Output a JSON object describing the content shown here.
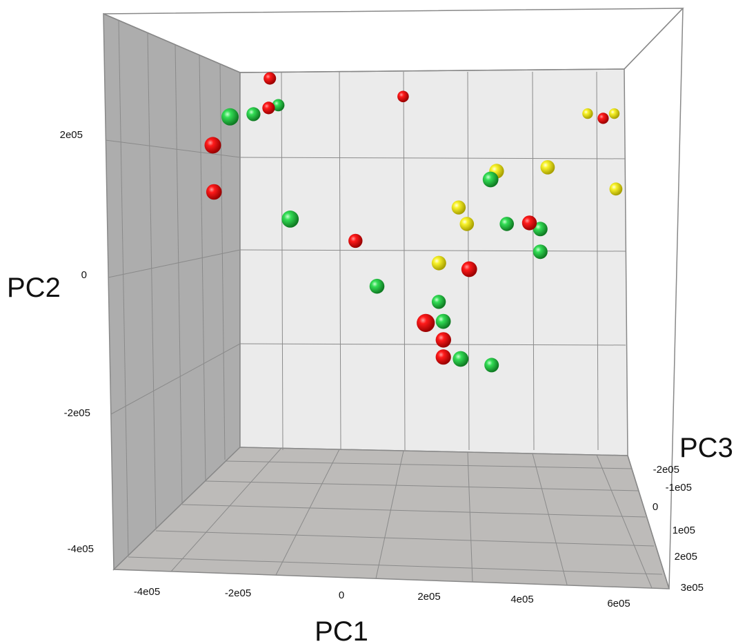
{
  "chart_data": {
    "type": "scatter",
    "subtype": "3d-scatter",
    "title": "",
    "xlabel": "PC1",
    "ylabel": "PC2",
    "zlabel": "PC3",
    "xlim": [
      -450000,
      680000
    ],
    "ylim": [
      -460000,
      330000
    ],
    "zlim": [
      -250000,
      300000
    ],
    "x_ticks": [
      "-4e05",
      "-2e05",
      "0",
      "2e05",
      "4e05",
      "6e05"
    ],
    "y_ticks": [
      "2e05",
      "0",
      "-2e05",
      "-4e05"
    ],
    "z_ticks": [
      "-2e05",
      "-1e05",
      "0",
      "1e05",
      "2e05",
      "3e05"
    ],
    "grid": true,
    "legend": "none",
    "colors": {
      "red": "#e00000",
      "green": "#22cc44",
      "yellow": "#f2ec1e"
    },
    "series": [
      {
        "color": "red",
        "points": [
          {
            "x": -330000,
            "y": 290000,
            "z": -160000
          },
          {
            "x": -330000,
            "y": 230000,
            "z": -150000
          },
          {
            "x": 30000,
            "y": 270000,
            "z": -220000
          },
          {
            "x": 610000,
            "y": 230000,
            "z": -240000
          },
          {
            "x": -380000,
            "y": 120000,
            "z": 120000
          },
          {
            "x": -400000,
            "y": 50000,
            "z": 50000
          },
          {
            "x": -80000,
            "y": -30000,
            "z": -50000
          },
          {
            "x": 350000,
            "y": 0,
            "z": 0
          },
          {
            "x": 200000,
            "y": -80000,
            "z": 60000
          },
          {
            "x": 100000,
            "y": -160000,
            "z": 220000
          },
          {
            "x": 140000,
            "y": -200000,
            "z": 40000
          },
          {
            "x": 140000,
            "y": -230000,
            "z": 30000
          }
        ]
      },
      {
        "color": "green",
        "points": [
          {
            "x": -310000,
            "y": 240000,
            "z": -170000
          },
          {
            "x": -340000,
            "y": 200000,
            "z": -60000
          },
          {
            "x": -330000,
            "y": 160000,
            "z": 160000
          },
          {
            "x": -200000,
            "y": 0,
            "z": 150000
          },
          {
            "x": 250000,
            "y": 70000,
            "z": 60000
          },
          {
            "x": 300000,
            "y": 0,
            "z": -40000
          },
          {
            "x": 380000,
            "y": -10000,
            "z": -20000
          },
          {
            "x": 380000,
            "y": -50000,
            "z": -20000
          },
          {
            "x": -20000,
            "y": -110000,
            "z": 10000
          },
          {
            "x": 130000,
            "y": -140000,
            "z": -50000
          },
          {
            "x": 140000,
            "y": -170000,
            "z": 20000
          },
          {
            "x": 180000,
            "y": -230000,
            "z": 60000
          },
          {
            "x": 260000,
            "y": -250000,
            "z": -20000
          }
        ]
      },
      {
        "color": "yellow",
        "points": [
          {
            "x": 580000,
            "y": 250000,
            "z": -280000
          },
          {
            "x": 660000,
            "y": 250000,
            "z": -280000
          },
          {
            "x": 400000,
            "y": 100000,
            "z": -30000
          },
          {
            "x": 270000,
            "y": 90000,
            "z": 0
          },
          {
            "x": 600000,
            "y": 70000,
            "z": -120000
          },
          {
            "x": 180000,
            "y": 30000,
            "z": -50000
          },
          {
            "x": 200000,
            "y": 0,
            "z": -40000
          },
          {
            "x": 130000,
            "y": -70000,
            "z": -20000
          }
        ]
      }
    ]
  }
}
